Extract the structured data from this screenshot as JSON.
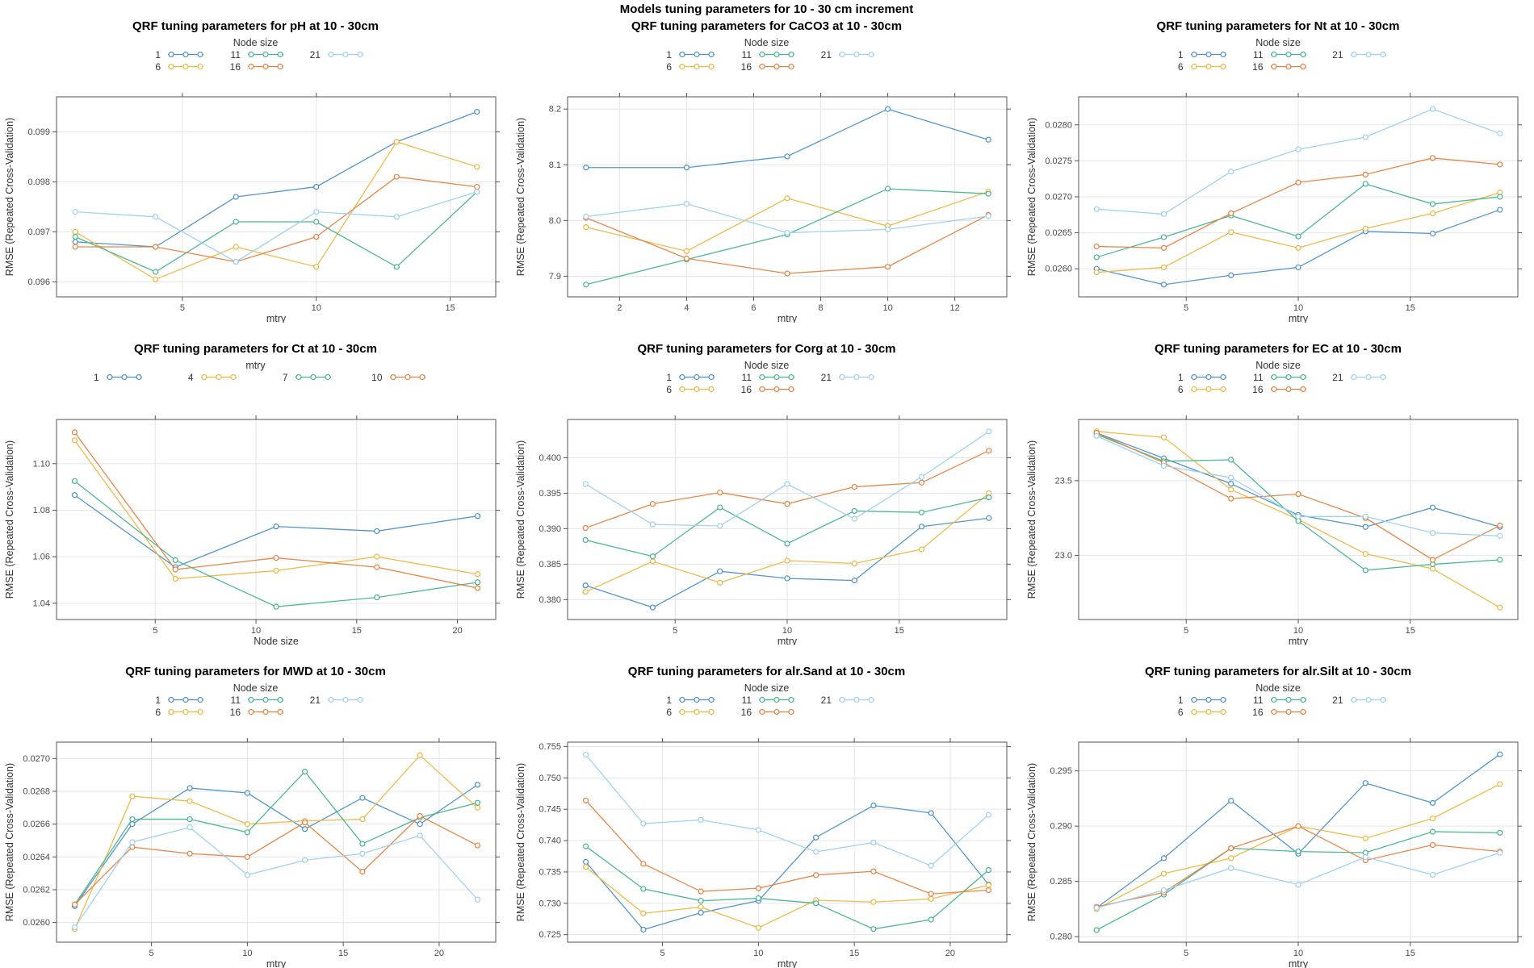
{
  "figure": {
    "suptitle": "Models tuning parameters for 10 - 30 cm increment"
  },
  "chart_data": [
    {
      "id": "ph",
      "type": "line",
      "title": "QRF tuning parameters for pH at 10 - 30cm",
      "legend_title": "Node size",
      "legend_rows": 2,
      "xlabel": "mtry",
      "ylabel": "RMSE (Repeated Cross-Validation)",
      "x": [
        1,
        4,
        7,
        10,
        13,
        16
      ],
      "xticks": [
        5,
        10,
        15
      ],
      "xtick_labels": [
        "5",
        "10",
        "15"
      ],
      "yticks": [
        0.096,
        0.097,
        0.098,
        0.099
      ],
      "ytick_labels": [
        "0.096",
        "0.097",
        "0.098",
        "0.099"
      ],
      "xlim": [
        0.3,
        16.7
      ],
      "ylim": [
        0.0957,
        0.0997
      ],
      "series": [
        {
          "name": "1",
          "color": "#4a90c9",
          "values": [
            0.0968,
            0.0967,
            0.0977,
            0.0979,
            0.0988,
            0.0994
          ]
        },
        {
          "name": "6",
          "color": "#eeb63f",
          "values": [
            0.097,
            0.09605,
            0.0967,
            0.0963,
            0.0988,
            0.0983
          ]
        },
        {
          "name": "11",
          "color": "#43b48d",
          "values": [
            0.0969,
            0.0962,
            0.0972,
            0.0972,
            0.0963,
            0.0978
          ]
        },
        {
          "name": "16",
          "color": "#e6813f",
          "values": [
            0.0967,
            0.0967,
            0.0964,
            0.0969,
            0.0981,
            0.0979
          ]
        },
        {
          "name": "21",
          "color": "#9bd0ee",
          "values": [
            0.0974,
            0.0973,
            0.0964,
            0.0974,
            0.0973,
            0.0978
          ]
        }
      ]
    },
    {
      "id": "caco3",
      "type": "line",
      "title": "QRF tuning parameters for CaCO3 at 10 - 30cm",
      "legend_title": "Node size",
      "legend_rows": 2,
      "xlabel": "mtry",
      "ylabel": "RMSE (Repeated Cross-Validation)",
      "x": [
        1,
        4,
        7,
        10,
        13
      ],
      "xticks": [
        2,
        4,
        6,
        8,
        10,
        12
      ],
      "xtick_labels": [
        "2",
        "4",
        "6",
        "8",
        "10",
        "12"
      ],
      "yticks": [
        7.9,
        8.0,
        8.1,
        8.2
      ],
      "ytick_labels": [
        "7.9",
        "8.0",
        "8.1",
        "8.2"
      ],
      "xlim": [
        0.45,
        13.55
      ],
      "ylim": [
        7.863,
        8.222
      ],
      "series": [
        {
          "name": "1",
          "color": "#4a90c9",
          "values": [
            8.095,
            8.095,
            8.115,
            8.2,
            8.145
          ]
        },
        {
          "name": "6",
          "color": "#eeb63f",
          "values": [
            7.988,
            7.945,
            8.04,
            7.99,
            8.052
          ]
        },
        {
          "name": "11",
          "color": "#43b48d",
          "values": [
            7.885,
            7.93,
            7.975,
            8.057,
            8.048
          ]
        },
        {
          "name": "16",
          "color": "#e6813f",
          "values": [
            8.005,
            7.932,
            7.905,
            7.917,
            8.01
          ]
        },
        {
          "name": "21",
          "color": "#9bd0ee",
          "values": [
            8.007,
            8.03,
            7.978,
            7.984,
            8.008
          ]
        }
      ]
    },
    {
      "id": "nt",
      "type": "line",
      "title": "QRF tuning parameters for Nt at 10 - 30cm",
      "legend_title": "Node size",
      "legend_rows": 2,
      "xlabel": "mtry",
      "ylabel": "RMSE (Repeated Cross-Validation)",
      "x": [
        1,
        4,
        7,
        10,
        13,
        16,
        19
      ],
      "xticks": [
        5,
        10,
        15
      ],
      "xtick_labels": [
        "5",
        "10",
        "15"
      ],
      "yticks": [
        0.026,
        0.0265,
        0.027,
        0.0275,
        0.028
      ],
      "ytick_labels": [
        "0.0260",
        "0.0265",
        "0.0270",
        "0.0275",
        "0.0280"
      ],
      "xlim": [
        0.2,
        19.8
      ],
      "ylim": [
        0.02561,
        0.02839
      ],
      "series": [
        {
          "name": "1",
          "color": "#4a90c9",
          "values": [
            0.026,
            0.02578,
            0.02591,
            0.02602,
            0.02652,
            0.02649,
            0.02682
          ]
        },
        {
          "name": "6",
          "color": "#eeb63f",
          "values": [
            0.02595,
            0.02602,
            0.02651,
            0.02629,
            0.02656,
            0.02677,
            0.02706
          ]
        },
        {
          "name": "11",
          "color": "#43b48d",
          "values": [
            0.02616,
            0.02644,
            0.02674,
            0.02645,
            0.02718,
            0.0269,
            0.027
          ]
        },
        {
          "name": "16",
          "color": "#e6813f",
          "values": [
            0.02631,
            0.02629,
            0.02677,
            0.0272,
            0.02731,
            0.02754,
            0.02745
          ]
        },
        {
          "name": "21",
          "color": "#9bd0ee",
          "values": [
            0.02683,
            0.02676,
            0.02735,
            0.02766,
            0.02783,
            0.02822,
            0.02788
          ]
        }
      ]
    },
    {
      "id": "ct",
      "type": "line",
      "title": "QRF tuning parameters for Ct at 10 - 30cm",
      "legend_title": "mtry",
      "legend_rows": 1,
      "xlabel": "Node size",
      "ylabel": "RMSE (Repeated Cross-Validation)",
      "x": [
        1,
        6,
        11,
        16,
        21
      ],
      "xticks": [
        5,
        10,
        15,
        20
      ],
      "xtick_labels": [
        "5",
        "10",
        "15",
        "20"
      ],
      "yticks": [
        1.04,
        1.06,
        1.08,
        1.1
      ],
      "ytick_labels": [
        "1.04",
        "1.06",
        "1.08",
        "1.10"
      ],
      "xlim": [
        0.1,
        21.9
      ],
      "ylim": [
        1.033,
        1.119
      ],
      "series": [
        {
          "name": "1",
          "color": "#4a90c9",
          "values": [
            1.0865,
            1.0555,
            1.073,
            1.071,
            1.0775
          ]
        },
        {
          "name": "4",
          "color": "#eeb63f",
          "values": [
            1.11,
            1.0505,
            1.054,
            1.06,
            1.0525
          ]
        },
        {
          "name": "7",
          "color": "#43b48d",
          "values": [
            1.0925,
            1.0585,
            1.0385,
            1.0425,
            1.049
          ]
        },
        {
          "name": "10",
          "color": "#e6813f",
          "values": [
            1.1135,
            1.0545,
            1.0595,
            1.0555,
            1.0465
          ]
        }
      ]
    },
    {
      "id": "corg",
      "type": "line",
      "title": "QRF tuning parameters for Corg at 10 - 30cm",
      "legend_title": "Node size",
      "legend_rows": 2,
      "xlabel": "mtry",
      "ylabel": "RMSE (Repeated Cross-Validation)",
      "x": [
        1,
        4,
        7,
        10,
        13,
        16,
        19
      ],
      "xticks": [
        5,
        10,
        15
      ],
      "xtick_labels": [
        "5",
        "10",
        "15"
      ],
      "yticks": [
        0.38,
        0.385,
        0.39,
        0.395,
        0.4
      ],
      "ytick_labels": [
        "0.380",
        "0.385",
        "0.390",
        "0.395",
        "0.400"
      ],
      "xlim": [
        0.2,
        19.8
      ],
      "ylim": [
        0.3772,
        0.4054
      ],
      "series": [
        {
          "name": "1",
          "color": "#4a90c9",
          "values": [
            0.382,
            0.3789,
            0.384,
            0.383,
            0.3827,
            0.3903,
            0.3915
          ]
        },
        {
          "name": "6",
          "color": "#eeb63f",
          "values": [
            0.3811,
            0.3854,
            0.3824,
            0.3855,
            0.3851,
            0.3871,
            0.395
          ]
        },
        {
          "name": "11",
          "color": "#43b48d",
          "values": [
            0.3884,
            0.3861,
            0.393,
            0.3879,
            0.3925,
            0.3923,
            0.3944
          ]
        },
        {
          "name": "16",
          "color": "#e6813f",
          "values": [
            0.3901,
            0.3935,
            0.3951,
            0.3935,
            0.3959,
            0.3965,
            0.401
          ]
        },
        {
          "name": "21",
          "color": "#9bd0ee",
          "values": [
            0.3963,
            0.3906,
            0.3904,
            0.3963,
            0.3914,
            0.3973,
            0.4037
          ]
        }
      ]
    },
    {
      "id": "ec",
      "type": "line",
      "title": "QRF tuning parameters for EC at 10 - 30cm",
      "legend_title": "Node size",
      "legend_rows": 2,
      "xlabel": "mtry",
      "ylabel": "RMSE (Repeated Cross-Validation)",
      "x": [
        1,
        4,
        7,
        10,
        13,
        16,
        19
      ],
      "xticks": [
        5,
        10,
        15
      ],
      "xtick_labels": [
        "5",
        "10",
        "15"
      ],
      "yticks": [
        23.0,
        23.5
      ],
      "ytick_labels": [
        "23.0",
        "23.5"
      ],
      "xlim": [
        0.2,
        19.8
      ],
      "ylim": [
        22.57,
        23.91
      ],
      "series": [
        {
          "name": "1",
          "color": "#4a90c9",
          "values": [
            23.82,
            23.65,
            23.48,
            23.27,
            23.19,
            23.32,
            23.19
          ]
        },
        {
          "name": "6",
          "color": "#eeb63f",
          "values": [
            23.83,
            23.79,
            23.44,
            23.24,
            23.01,
            22.91,
            22.65
          ]
        },
        {
          "name": "11",
          "color": "#43b48d",
          "values": [
            23.81,
            23.63,
            23.64,
            23.23,
            22.9,
            22.94,
            22.97
          ]
        },
        {
          "name": "16",
          "color": "#e6813f",
          "values": [
            23.82,
            23.62,
            23.38,
            23.41,
            23.25,
            22.97,
            23.2
          ]
        },
        {
          "name": "21",
          "color": "#9bd0ee",
          "values": [
            23.8,
            23.6,
            23.52,
            23.26,
            23.26,
            23.15,
            23.13
          ]
        }
      ]
    },
    {
      "id": "mwd",
      "type": "line",
      "title": "QRF tuning parameters for MWD at 10 - 30cm",
      "legend_title": "Node size",
      "legend_rows": 2,
      "xlabel": "mtry",
      "ylabel": "RMSE (Repeated Cross-Validation)",
      "x": [
        1,
        4,
        7,
        10,
        13,
        16,
        19,
        22
      ],
      "xticks": [
        5,
        10,
        15,
        20
      ],
      "xtick_labels": [
        "5",
        "10",
        "15",
        "20"
      ],
      "yticks": [
        0.026,
        0.0262,
        0.0264,
        0.0266,
        0.0268,
        0.027
      ],
      "ytick_labels": [
        "0.0260",
        "0.0262",
        "0.0264",
        "0.0266",
        "0.0268",
        "0.0270"
      ],
      "xlim": [
        0.05,
        22.95
      ],
      "ylim": [
        0.02588,
        0.0271
      ],
      "series": [
        {
          "name": "1",
          "color": "#4a90c9",
          "values": [
            0.0261,
            0.0266,
            0.02682,
            0.02679,
            0.02657,
            0.02676,
            0.0266,
            0.02684
          ]
        },
        {
          "name": "6",
          "color": "#eeb63f",
          "values": [
            0.02596,
            0.02677,
            0.02674,
            0.0266,
            0.02662,
            0.02663,
            0.02702,
            0.0267
          ]
        },
        {
          "name": "11",
          "color": "#43b48d",
          "values": [
            0.02611,
            0.02663,
            0.02663,
            0.02655,
            0.02692,
            0.02648,
            0.02664,
            0.02673
          ]
        },
        {
          "name": "16",
          "color": "#e6813f",
          "values": [
            0.02611,
            0.02646,
            0.02642,
            0.0264,
            0.02661,
            0.02631,
            0.02665,
            0.02647
          ]
        },
        {
          "name": "21",
          "color": "#9bd0ee",
          "values": [
            0.02597,
            0.02649,
            0.02658,
            0.02629,
            0.02638,
            0.02642,
            0.02653,
            0.02614
          ]
        }
      ]
    },
    {
      "id": "alr_sand",
      "type": "line",
      "title": "QRF tuning parameters for alr.Sand at 10 - 30cm",
      "legend_title": "Node size",
      "legend_rows": 2,
      "xlabel": "mtry",
      "ylabel": "RMSE (Repeated Cross-Validation)",
      "x": [
        1,
        4,
        7,
        10,
        13,
        16,
        19,
        22
      ],
      "xticks": [
        5,
        10,
        15,
        20
      ],
      "xtick_labels": [
        "5",
        "10",
        "15",
        "20"
      ],
      "yticks": [
        0.725,
        0.73,
        0.735,
        0.74,
        0.745,
        0.75,
        0.755
      ],
      "ytick_labels": [
        "0.725",
        "0.730",
        "0.735",
        "0.740",
        "0.745",
        "0.750",
        "0.755"
      ],
      "xlim": [
        0.05,
        22.95
      ],
      "ylim": [
        0.7238,
        0.7557
      ],
      "series": [
        {
          "name": "1",
          "color": "#4a90c9",
          "values": [
            0.7366,
            0.7258,
            0.7285,
            0.7304,
            0.7405,
            0.7456,
            0.7444,
            0.733
          ]
        },
        {
          "name": "6",
          "color": "#eeb63f",
          "values": [
            0.7358,
            0.7284,
            0.7294,
            0.7261,
            0.7305,
            0.7302,
            0.7307,
            0.7329
          ]
        },
        {
          "name": "11",
          "color": "#43b48d",
          "values": [
            0.7391,
            0.7323,
            0.7304,
            0.7308,
            0.73,
            0.7259,
            0.7274,
            0.7353
          ]
        },
        {
          "name": "16",
          "color": "#e6813f",
          "values": [
            0.7464,
            0.7363,
            0.7319,
            0.7324,
            0.7345,
            0.7351,
            0.7315,
            0.7321
          ]
        },
        {
          "name": "21",
          "color": "#9bd0ee",
          "values": [
            0.7537,
            0.7427,
            0.7433,
            0.7417,
            0.7382,
            0.7397,
            0.736,
            0.7441
          ]
        }
      ]
    },
    {
      "id": "alr_silt",
      "type": "line",
      "title": "QRF tuning parameters for alr.Silt at 10 - 30cm",
      "legend_title": "Node size",
      "legend_rows": 2,
      "xlabel": "mtry",
      "ylabel": "RMSE (Repeated Cross-Validation)",
      "x": [
        1,
        4,
        7,
        10,
        13,
        16,
        19
      ],
      "xticks": [
        5,
        10,
        15
      ],
      "xtick_labels": [
        "5",
        "10",
        "15"
      ],
      "yticks": [
        0.28,
        0.285,
        0.29,
        0.295
      ],
      "ytick_labels": [
        "0.280",
        "0.285",
        "0.290",
        "0.295"
      ],
      "xlim": [
        0.2,
        19.8
      ],
      "ylim": [
        0.2795,
        0.2976
      ],
      "series": [
        {
          "name": "1",
          "color": "#4a90c9",
          "values": [
            0.2826,
            0.2871,
            0.2923,
            0.2875,
            0.2939,
            0.2921,
            0.2965
          ]
        },
        {
          "name": "6",
          "color": "#eeb63f",
          "values": [
            0.2825,
            0.2857,
            0.2871,
            0.29,
            0.2889,
            0.2907,
            0.2938
          ]
        },
        {
          "name": "11",
          "color": "#43b48d",
          "values": [
            0.2806,
            0.2838,
            0.288,
            0.2877,
            0.2876,
            0.2895,
            0.2894
          ]
        },
        {
          "name": "16",
          "color": "#e6813f",
          "values": [
            0.2827,
            0.284,
            0.288,
            0.29,
            0.2869,
            0.2883,
            0.2877
          ]
        },
        {
          "name": "21",
          "color": "#9bd0ee",
          "values": [
            0.2826,
            0.2842,
            0.2862,
            0.2847,
            0.2872,
            0.2856,
            0.2876
          ]
        }
      ]
    }
  ]
}
